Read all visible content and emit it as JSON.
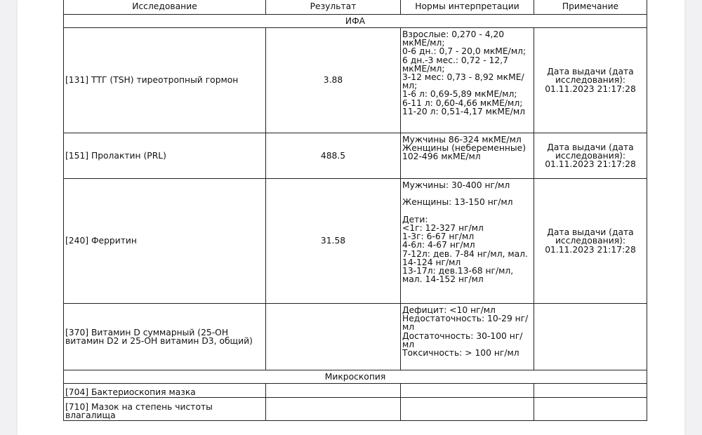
{
  "table": {
    "headers": [
      "Исследование",
      "Результат",
      "Нормы интерпретации",
      "Примечание"
    ],
    "sections": [
      {
        "title": "ИФА",
        "rows": [
          {
            "test": "[131] ТТГ (TSH) тиреотропный гормон",
            "result": "3.88",
            "norms": "Взрослые:  0,270 - 4,20 мкМЕ/мл;\n0-6 дн.: 0,7 - 20,0 мкМЕ/мл;\n6 дн.-3 мес.: 0,72 - 12,7 мкМЕ/мл;\n3-12 мес: 0,73 - 8,92 мкМЕ/мл;\n1-6 л: 0,69-5,89 мкМЕ/мл;\n6-11 л: 0,60-4,66 мкМЕ/мл;\n11-20 л: 0,51-4,17 мкМЕ/мл",
            "note": "Дата выдачи (дата исследования): 01.11.2023 21:17:28"
          },
          {
            "test": "[151] Пролактин (PRL)",
            "result": "488.5",
            "norms": "Мужчины 86-324 мкМЕ/мл\nЖенщины (небеременные) 102-496 мкМЕ/мл",
            "note": "Дата выдачи (дата исследования): 01.11.2023 21:17:28"
          },
          {
            "test": "[240] Ферритин",
            "result": "31.58",
            "norms": "Мужчины: 30-400 нг/мл\n\nЖенщины: 13-150 нг/мл\n\nДети:\n<1г: 12-327 нг/мл\n1-3г: 6-67 нг/мл\n4-6л: 4-67 нг/мл\n7-12л: дев. 7-84 нг/мл, мал. 14-124 нг/мл\n13-17л: дев.13-68 нг/мл, мал. 14-152 нг/мл",
            "note": "Дата выдачи (дата исследования): 01.11.2023 21:17:28"
          },
          {
            "test": "[370] Витамин D суммарный (25-OH витамин D2 и 25-OH витамин D3, общий)",
            "result": "",
            "norms": "Дефицит: <10 нг/мл\nНедостаточность: 10-29 нг/мл\nДостаточность: 30-100 нг/мл\nТоксичность: > 100 нг/мл",
            "note": ""
          }
        ]
      },
      {
        "title": "Микроскопия",
        "rows": [
          {
            "test": "[704] Бактериоскопия мазка",
            "result": "",
            "norms": "",
            "note": ""
          },
          {
            "test": "[710] Мазок на степень чистоты влагалища",
            "result": "",
            "norms": "",
            "note": ""
          }
        ]
      }
    ]
  }
}
